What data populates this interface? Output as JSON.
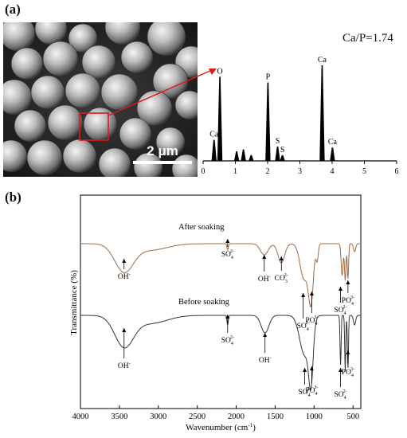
{
  "panel_a_label": "(a)",
  "panel_b_label": "(b)",
  "scale_bar_label": "2 μm",
  "ca_p_ratio": "Ca/P=1.74",
  "chart_data": [
    {
      "type": "bar",
      "title": "",
      "xlabel": "",
      "ylabel": "",
      "xlim": [
        0,
        6
      ],
      "x_ticks": [
        "0",
        "1",
        "2",
        "3",
        "4",
        "5",
        "6"
      ],
      "peaks": [
        {
          "label": "Ca",
          "x": 0.34,
          "y": 22
        },
        {
          "label": "O",
          "x": 0.52,
          "y": 88
        },
        {
          "label": "",
          "x": 1.04,
          "y": 10
        },
        {
          "label": "",
          "x": 1.25,
          "y": 12
        },
        {
          "label": "",
          "x": 1.49,
          "y": 6
        },
        {
          "label": "P",
          "x": 2.01,
          "y": 82
        },
        {
          "label": "S",
          "x": 2.31,
          "y": 15
        },
        {
          "label": "S",
          "x": 2.46,
          "y": 6
        },
        {
          "label": "Ca",
          "x": 3.69,
          "y": 100
        },
        {
          "label": "Ca",
          "x": 4.01,
          "y": 14
        }
      ]
    },
    {
      "type": "line",
      "title": "",
      "xlabel": "Wavenumber (cm",
      "xlabel_sup": "-1",
      "xlabel_close": ")",
      "ylabel": "Transmittance (%)",
      "xlim": [
        4000,
        400
      ],
      "x_ticks": [
        "4000",
        "3500",
        "3000",
        "2500",
        "2000",
        "1500",
        "1000",
        "500"
      ],
      "series": [
        {
          "name": "After soaking",
          "color": "#9c6b4a"
        },
        {
          "name": "Before soaking",
          "color": "#333333"
        }
      ],
      "annotations_after": [
        {
          "base": "OH",
          "sup": "-",
          "sub": "",
          "x": 3440
        },
        {
          "base": "SO",
          "sup": "2-",
          "sub": "4",
          "x": 2110
        },
        {
          "base": "OH",
          "sup": "-",
          "sub": "",
          "x": 1640
        },
        {
          "base": "CO",
          "sup": "2-",
          "sub": "3",
          "x": 1420
        },
        {
          "base": "SO",
          "sup": "2-",
          "sub": "4",
          "x": 1140
        },
        {
          "base": "PO",
          "sup": "3-",
          "sub": "4",
          "x": 1030
        },
        {
          "base": "SO",
          "sup": "2-",
          "sub": "4",
          "x": 660
        },
        {
          "base": "PO",
          "sup": "3-",
          "sub": "4",
          "x": 565
        }
      ],
      "annotations_before": [
        {
          "base": "OH",
          "sup": "-",
          "sub": "",
          "x": 3440
        },
        {
          "base": "SO",
          "sup": "2-",
          "sub": "4",
          "x": 2110
        },
        {
          "base": "OH",
          "sup": "-",
          "sub": "",
          "x": 1630
        },
        {
          "base": "SO",
          "sup": "2-",
          "sub": "4",
          "x": 1120
        },
        {
          "base": "PO",
          "sup": "3-",
          "sub": "4",
          "x": 1030
        },
        {
          "base": "SO",
          "sup": "2-",
          "sub": "4",
          "x": 660
        },
        {
          "base": "PO",
          "sup": "3-",
          "sub": "4",
          "x": 565
        }
      ]
    }
  ]
}
